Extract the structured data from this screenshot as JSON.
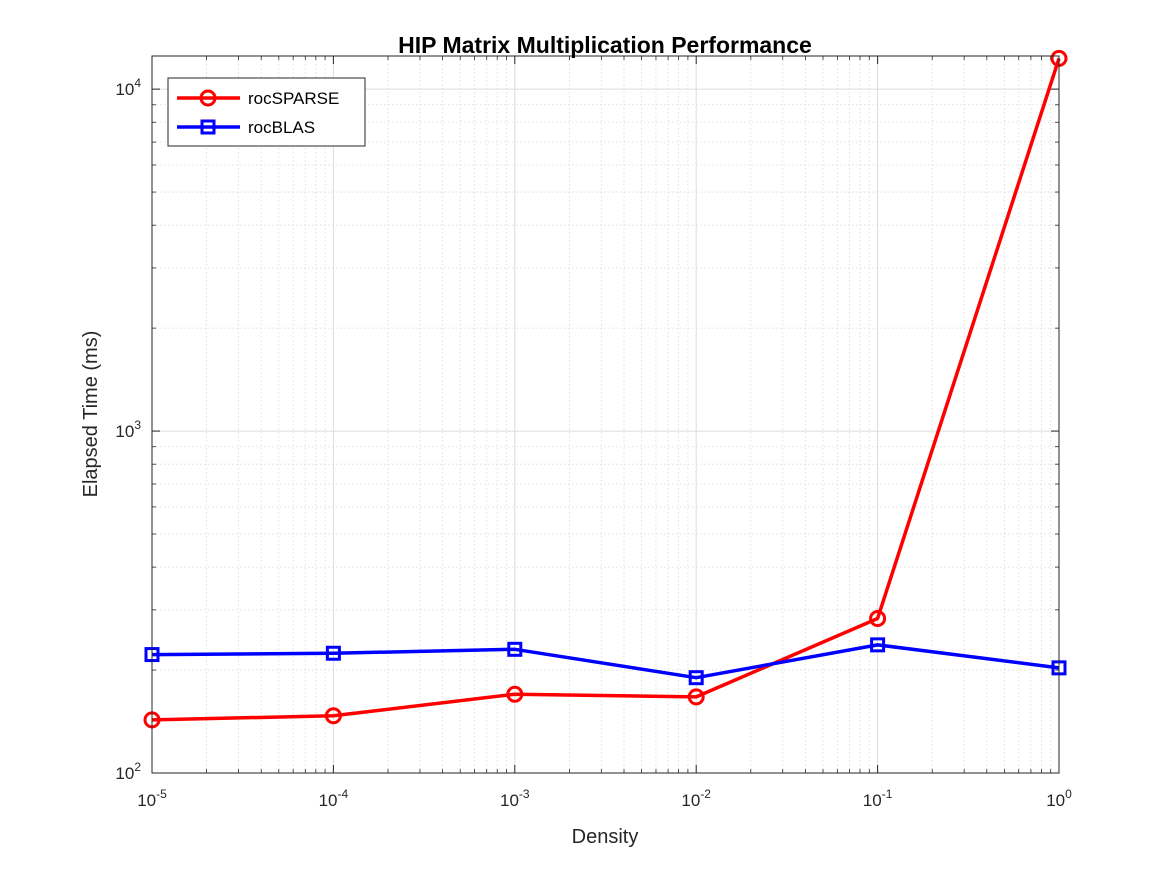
{
  "chart_data": {
    "type": "line",
    "title": "HIP Matrix Multiplication Performance",
    "xlabel": "Density",
    "ylabel": "Elapsed Time (ms)",
    "x_scale": "log",
    "y_scale": "log",
    "xlim": [
      1e-05,
      1
    ],
    "ylim": [
      100,
      12500
    ],
    "grid": true,
    "minor_grid": true,
    "legend_position": "top-left",
    "x": [
      1e-05,
      0.0001,
      0.001,
      0.01,
      0.1,
      1
    ],
    "x_ticks": [
      {
        "value": 1e-05,
        "base": "10",
        "exp": "-5"
      },
      {
        "value": 0.0001,
        "base": "10",
        "exp": "-4"
      },
      {
        "value": 0.001,
        "base": "10",
        "exp": "-3"
      },
      {
        "value": 0.01,
        "base": "10",
        "exp": "-2"
      },
      {
        "value": 0.1,
        "base": "10",
        "exp": "-1"
      },
      {
        "value": 1,
        "base": "10",
        "exp": "0"
      }
    ],
    "y_ticks": [
      {
        "value": 100,
        "base": "10",
        "exp": "2"
      },
      {
        "value": 1000,
        "base": "10",
        "exp": "3"
      },
      {
        "value": 10000,
        "base": "10",
        "exp": "4"
      }
    ],
    "series": [
      {
        "name": "rocSPARSE",
        "color": "#ff0000",
        "marker": "circle",
        "values": [
          143,
          147,
          170,
          167,
          283,
          12300
        ]
      },
      {
        "name": "rocBLAS",
        "color": "#0000ff",
        "marker": "square",
        "values": [
          222,
          224,
          230,
          190,
          237,
          203
        ]
      }
    ]
  }
}
